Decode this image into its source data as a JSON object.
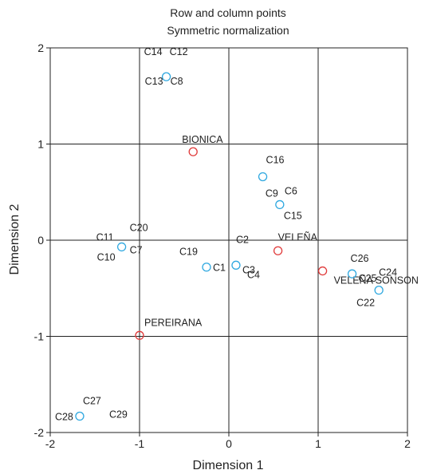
{
  "chart_data": {
    "type": "scatter",
    "title": "Row and column points",
    "subtitle": "Symmetric normalization",
    "xlabel": "Dimension 1",
    "ylabel": "Dimension 2",
    "xlim": [
      -2,
      2
    ],
    "ylim": [
      -2,
      2
    ],
    "xticks": [
      "-2",
      "-1",
      "0",
      "1",
      "2"
    ],
    "yticks": [
      "-2",
      "-1",
      "0",
      "1",
      "2"
    ],
    "grid": true,
    "colors": {
      "rows": "#e03a3a",
      "columns": "#2fa8e0"
    },
    "series": [
      {
        "points": [
          {
            "x": -0.4,
            "y": 0.92,
            "label": "BIONICA",
            "color": "rows"
          },
          {
            "x": 0.55,
            "y": -0.11,
            "label": "VELEÑA",
            "color": "rows"
          },
          {
            "x": 1.05,
            "y": -0.32,
            "label": "VELEÑA SONSON",
            "color": "rows"
          },
          {
            "x": -1.0,
            "y": -0.99,
            "label": "PEREIRANA",
            "color": "rows"
          }
        ]
      },
      {
        "points": [
          {
            "x": -0.7,
            "y": 1.7,
            "label": "C14 C12 C13 C8",
            "color": "columns"
          },
          {
            "x": 0.38,
            "y": 0.66,
            "label": "C16",
            "color": "columns"
          },
          {
            "x": 0.57,
            "y": 0.37,
            "label": "C9 C6 C15",
            "color": "columns"
          },
          {
            "x": -1.2,
            "y": -0.07,
            "label": "C11 C20 C10 C7",
            "color": "columns"
          },
          {
            "x": -0.25,
            "y": -0.28,
            "label": "C19 C1",
            "color": "columns"
          },
          {
            "x": 0.08,
            "y": -0.26,
            "label": "C2 C4 C3",
            "color": "columns"
          },
          {
            "x": 1.38,
            "y": -0.35,
            "label": "C26 C25",
            "color": "columns"
          },
          {
            "x": 1.68,
            "y": -0.52,
            "label": "C24 C22",
            "color": "columns"
          },
          {
            "x": -1.67,
            "y": -1.83,
            "label": "C27 C28 C29",
            "color": "columns"
          }
        ]
      }
    ]
  }
}
